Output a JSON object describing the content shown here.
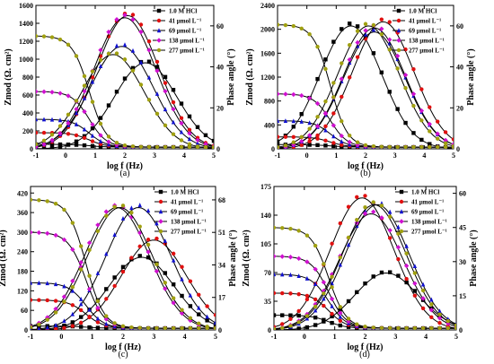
{
  "figure": {
    "panels": [
      "(a)",
      "(b)",
      "(c)",
      "(d)"
    ]
  },
  "legend_labels": [
    "1.0 M HCl",
    "41 µmol L⁻¹",
    "69 µmol L⁻¹",
    "138 µmol L⁻¹",
    "277 µmol L⁻¹"
  ],
  "series_colors": {
    "1.0 M HCl": "#000000",
    "41 µmol L⁻¹": "#e01010",
    "69 µmol L⁻¹": "#1010d0",
    "138 µmol L⁻¹": "#d010d0",
    "277 µmol L⁻¹": "#a0a010"
  },
  "chart_data": [
    {
      "type": "line",
      "panel": "(a)",
      "xlabel": "log f (Hz)",
      "ylabel": "Zmod (Ω. cm²)",
      "ylabel2": "Phase angle (°)",
      "xlim": [
        -1,
        5
      ],
      "ylim": [
        0,
        1600
      ],
      "y2lim": [
        0,
        70
      ],
      "xticks": [
        -1,
        0,
        1,
        2,
        3,
        4,
        5
      ],
      "yticks": [
        0,
        200,
        400,
        600,
        800,
        1000,
        1200,
        1400,
        1600
      ],
      "y2ticks": [
        0,
        20,
        40,
        60
      ],
      "legend_position": "top-right",
      "series": [
        {
          "name": "1.0 M HCl",
          "zmod_lowf": 50,
          "phase_peak": 42,
          "peak_logf": 2.7
        },
        {
          "name": "41 µmol L⁻¹",
          "zmod_lowf": 180,
          "phase_peak": 65,
          "peak_logf": 2.1
        },
        {
          "name": "69 µmol L⁻¹",
          "zmod_lowf": 330,
          "phase_peak": 50,
          "peak_logf": 1.9
        },
        {
          "name": "138 µmol L⁻¹",
          "zmod_lowf": 640,
          "phase_peak": 64,
          "peak_logf": 2.0
        },
        {
          "name": "277 µmol L⁻¹",
          "zmod_lowf": 1260,
          "phase_peak": 46,
          "peak_logf": 1.6
        }
      ]
    },
    {
      "type": "line",
      "panel": "(b)",
      "xlabel": "log f (Hz)",
      "ylabel": "Zmod (Ω. cm²)",
      "ylabel2": "Phase angle (°)",
      "xlim": [
        -1,
        5
      ],
      "ylim": [
        0,
        2400
      ],
      "y2lim": [
        0,
        70
      ],
      "xticks": [
        -1,
        0,
        1,
        2,
        3,
        4,
        5
      ],
      "yticks": [
        0,
        400,
        800,
        1200,
        1600,
        2000,
        2400
      ],
      "y2ticks": [
        0,
        20,
        40,
        60
      ],
      "legend_position": "top-right",
      "series": [
        {
          "name": "1.0 M HCl",
          "zmod_lowf": 70,
          "phase_peak": 60,
          "peak_logf": 1.5
        },
        {
          "name": "41 µmol L⁻¹",
          "zmod_lowf": 200,
          "phase_peak": 62,
          "peak_logf": 2.6
        },
        {
          "name": "69 µmol L⁻¹",
          "zmod_lowf": 470,
          "phase_peak": 57,
          "peak_logf": 2.3
        },
        {
          "name": "138 µmol L⁻¹",
          "zmod_lowf": 920,
          "phase_peak": 59,
          "peak_logf": 2.3
        },
        {
          "name": "277 µmol L⁻¹",
          "zmod_lowf": 2080,
          "phase_peak": 60,
          "peak_logf": 2.1
        }
      ]
    },
    {
      "type": "line",
      "panel": "(c)",
      "xlabel": "log f (Hz)",
      "ylabel": "Zmod (Ω. cm²)",
      "ylabel2": "Phase angle (°)",
      "xlim": [
        -1,
        5
      ],
      "ylim": [
        0,
        440
      ],
      "y2lim": [
        0,
        75
      ],
      "xticks": [
        -1,
        0,
        1,
        2,
        3,
        4,
        5
      ],
      "yticks": [
        0,
        60,
        120,
        180,
        240,
        300,
        360,
        420
      ],
      "y2ticks": [
        0,
        17,
        34,
        51,
        68
      ],
      "legend_position": "top-right",
      "series": [
        {
          "name": "1.0 M HCl",
          "zmod_lowf": 12,
          "phase_peak": 38,
          "peak_logf": 2.6
        },
        {
          "name": "41 µmol L⁻¹",
          "zmod_lowf": 92,
          "phase_peak": 47,
          "peak_logf": 3.0
        },
        {
          "name": "69 µmol L⁻¹",
          "zmod_lowf": 145,
          "phase_peak": 64,
          "peak_logf": 2.5
        },
        {
          "name": "138 µmol L⁻¹",
          "zmod_lowf": 300,
          "phase_peak": 64,
          "peak_logf": 1.8
        },
        {
          "name": "277 µmol L⁻¹",
          "zmod_lowf": 400,
          "phase_peak": 64,
          "peak_logf": 1.9
        }
      ]
    },
    {
      "type": "line",
      "panel": "(d)",
      "xlabel": "log f (Hz)",
      "ylabel": "Zmod (Ω. cm²)",
      "ylabel2": "Phase angle (°)",
      "xlim": [
        -1,
        5
      ],
      "ylim": [
        0,
        175
      ],
      "y2lim": [
        0,
        63
      ],
      "xticks": [
        -1,
        0,
        1,
        2,
        3,
        4,
        5
      ],
      "yticks": [
        0,
        35,
        70,
        105,
        140,
        175
      ],
      "y2ticks": [
        0,
        15,
        30,
        45,
        60
      ],
      "legend_position": "top-right",
      "series": [
        {
          "name": "1.0 M HCl",
          "zmod_lowf": 18,
          "phase_peak": 25,
          "peak_logf": 2.7
        },
        {
          "name": "41 µmol L⁻¹",
          "zmod_lowf": 45,
          "phase_peak": 58,
          "peak_logf": 1.9
        },
        {
          "name": "69 µmol L⁻¹",
          "zmod_lowf": 68,
          "phase_peak": 55,
          "peak_logf": 2.4
        },
        {
          "name": "138 µmol L⁻¹",
          "zmod_lowf": 90,
          "phase_peak": 51,
          "peak_logf": 2.2
        },
        {
          "name": "277 µmol L⁻¹",
          "zmod_lowf": 125,
          "phase_peak": 55,
          "peak_logf": 2.3
        }
      ]
    }
  ]
}
